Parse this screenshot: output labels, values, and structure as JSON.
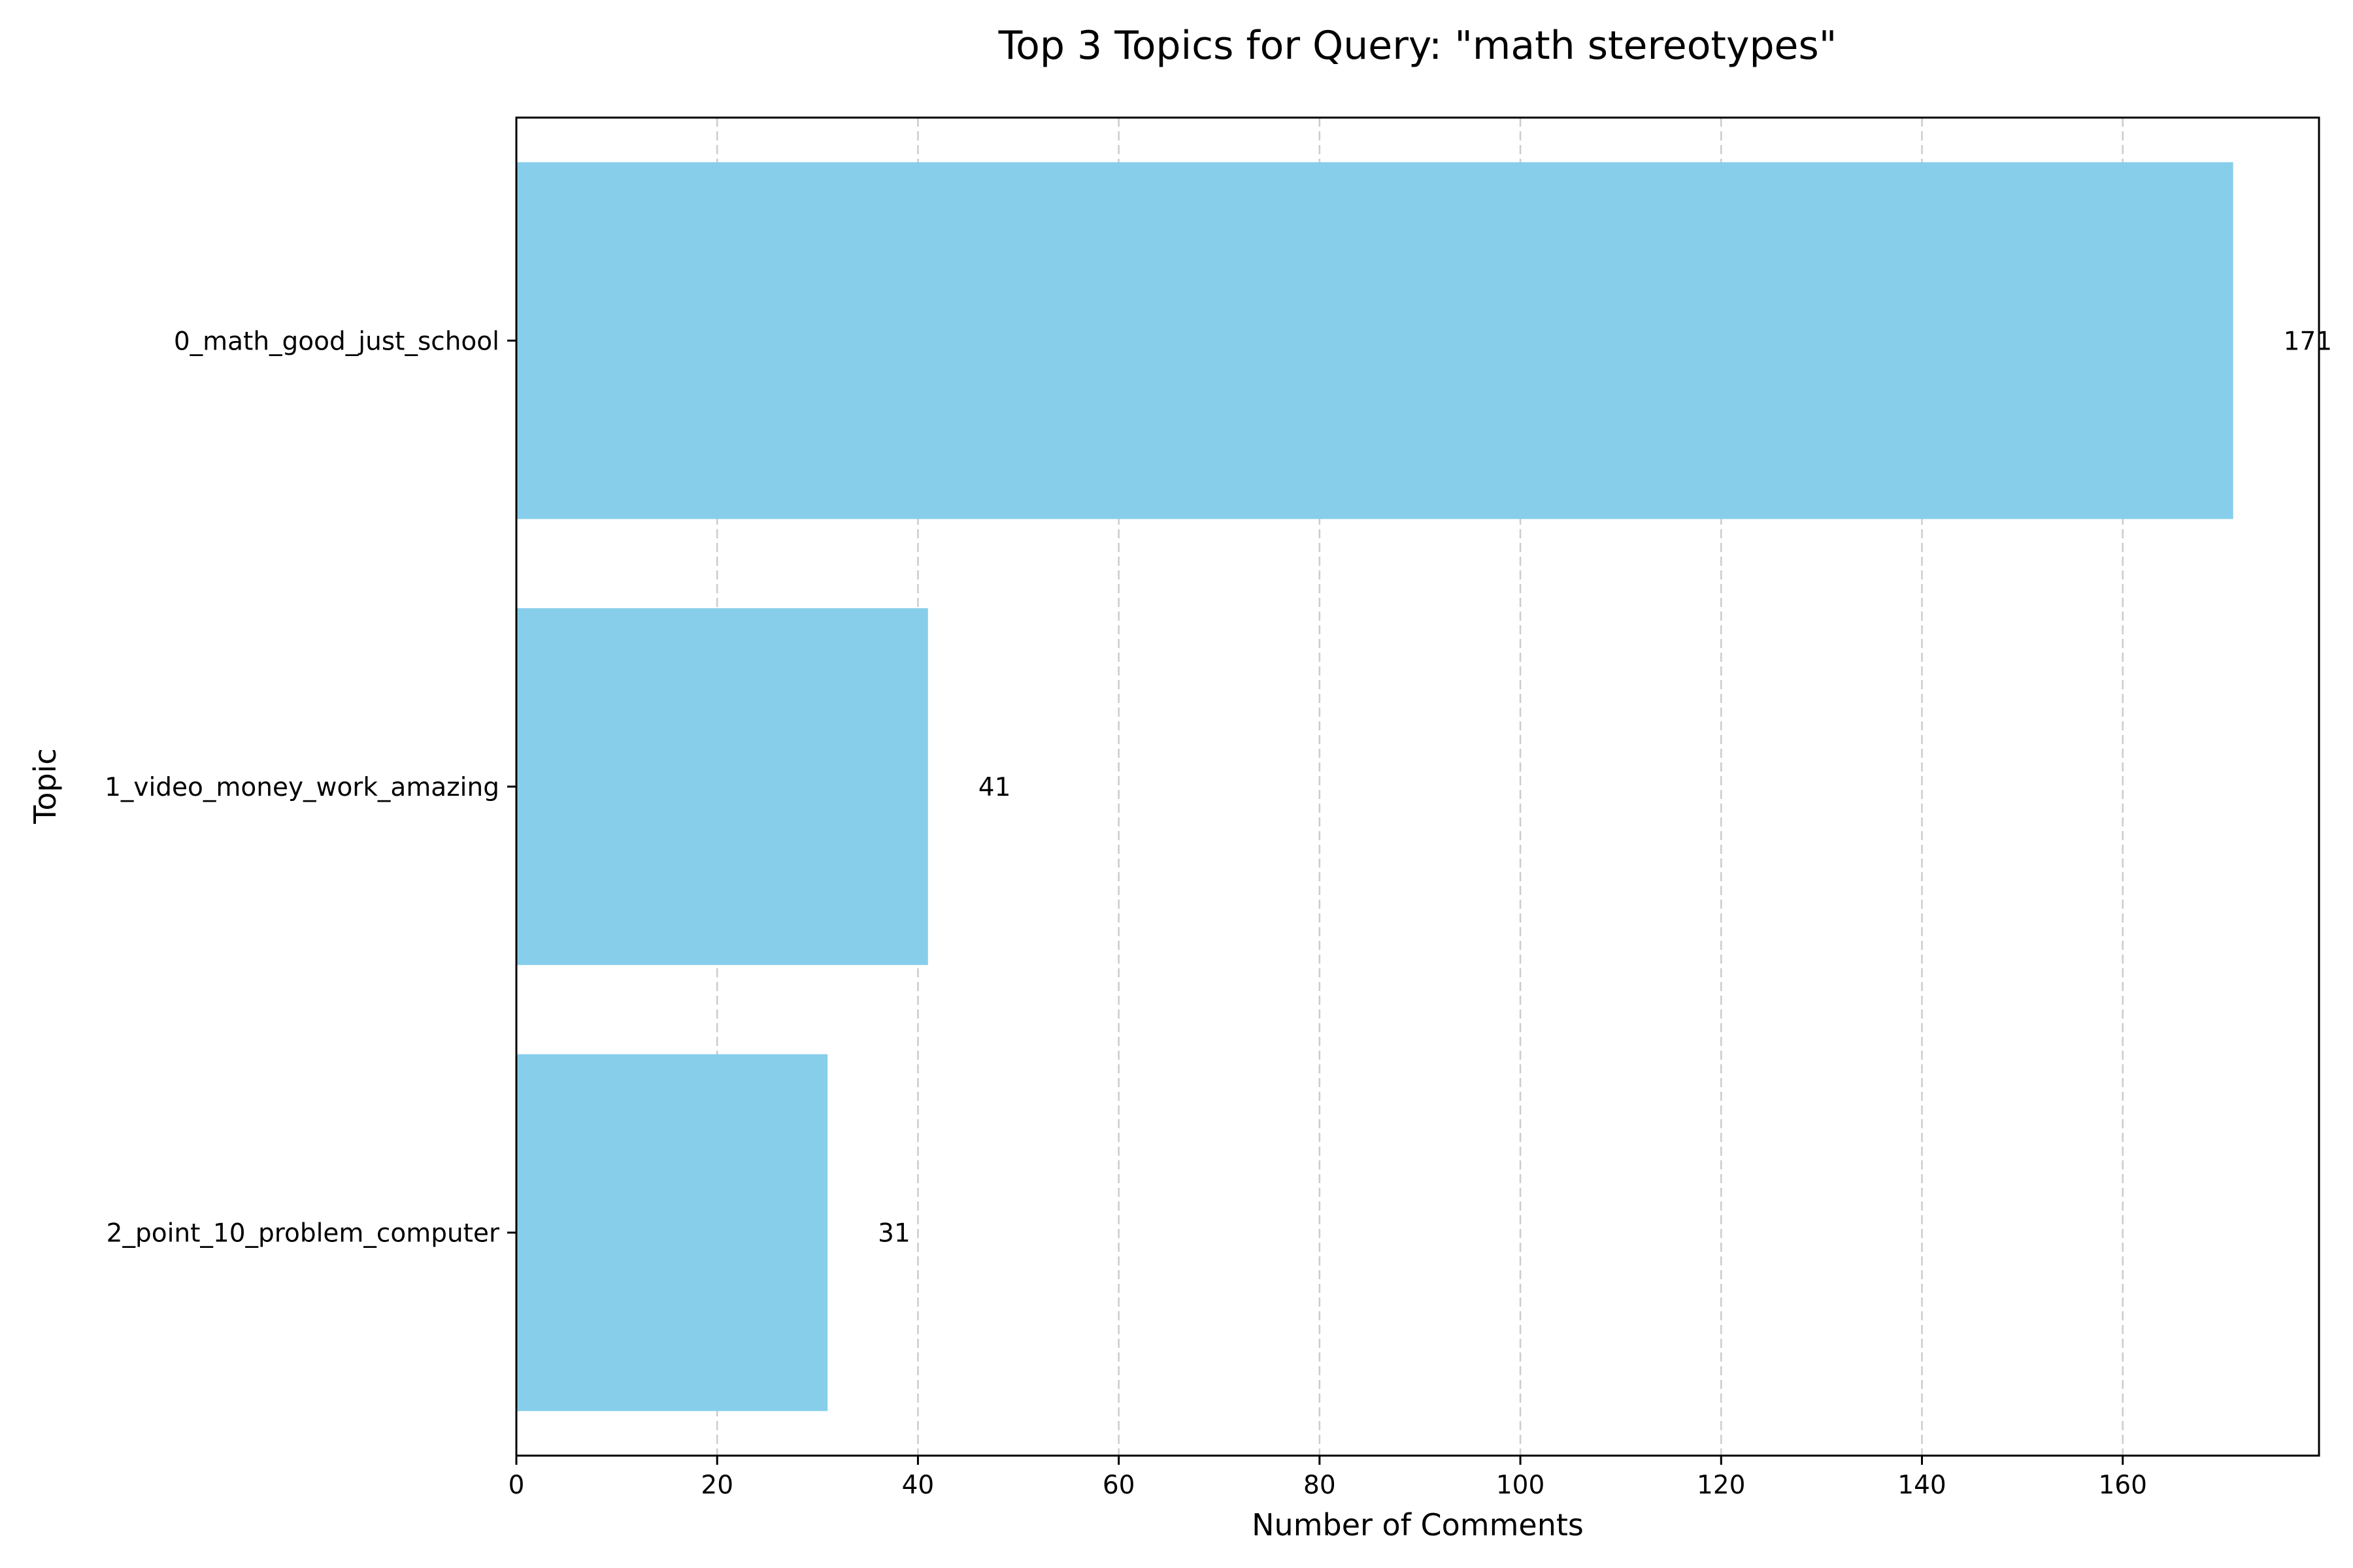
{
  "chart_data": {
    "type": "bar",
    "orientation": "horizontal",
    "title": "Top 3 Topics for Query: \"math stereotypes\"",
    "xlabel": "Number of Comments",
    "ylabel": "Topic",
    "categories": [
      "0_math_good_just_school",
      "1_video_money_work_amazing",
      "2_point_10_problem_computer"
    ],
    "values": [
      171,
      41,
      31
    ],
    "data_labels": [
      "171",
      "41",
      "31"
    ],
    "xlim": [
      0,
      179.55
    ],
    "xticks": [
      0,
      20,
      40,
      60,
      80,
      100,
      120,
      140,
      160
    ],
    "grid": "x-axis, dashed",
    "bar_color": "#87ceeb",
    "grid_color": "#cccccc"
  }
}
